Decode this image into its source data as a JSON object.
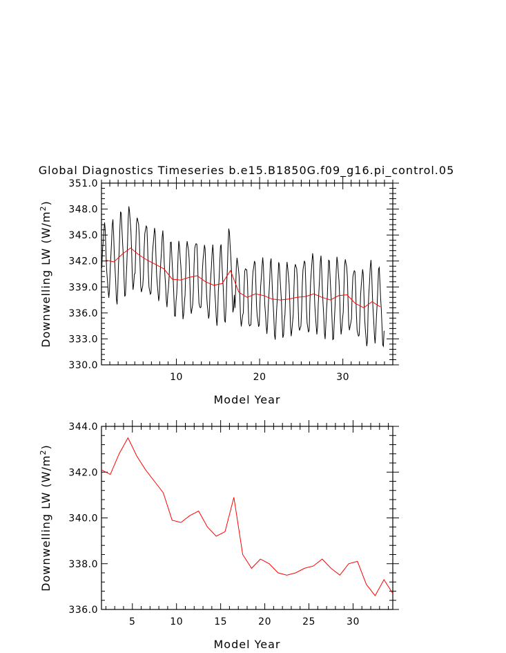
{
  "title": "Global Diagnostics Timeseries b.e15.B1850G.f09_g16.pi_control.05",
  "chart_data": [
    {
      "type": "line",
      "xlabel": "Model Year",
      "ylabel": "Downwelling LW (W/m",
      "ylabel_sup": "2",
      "ylabel_close": ")",
      "xlim": [
        1,
        36
      ],
      "ylim": [
        330,
        351
      ],
      "xticks": [
        10,
        20,
        30
      ],
      "yticks": [
        "330.0",
        "333.0",
        "336.0",
        "339.0",
        "342.0",
        "345.0",
        "348.0",
        "351.0"
      ],
      "series": [
        {
          "color": "#000000",
          "monthly": true,
          "annual_means": [
            342.1,
            341.9,
            342.8,
            343.5,
            342.7,
            342.1,
            341.6,
            341.1,
            339.9,
            339.8,
            340.1,
            340.3,
            339.6,
            339.2,
            339.4,
            340.9,
            338.4,
            337.8,
            338.2,
            338.0,
            337.6,
            337.5,
            337.6,
            337.8,
            337.9,
            338.2,
            337.8,
            337.5,
            338.0,
            338.1,
            337.1,
            336.6,
            337.3,
            336.7
          ],
          "seasonal_amplitude": [
            4.0,
            4.4,
            4.6,
            4.6,
            4.6,
            4.3,
            4.0,
            3.9,
            4.0,
            4.2,
            4.3,
            4.2,
            4.2,
            4.2,
            4.1,
            4.5,
            3.9,
            3.8,
            3.9,
            4.0,
            4.2,
            4.0,
            4.1,
            4.2,
            4.4,
            4.4,
            4.3,
            4.3,
            4.2,
            4.3,
            4.2,
            4.3,
            4.3,
            4.2
          ]
        },
        {
          "color": "#ff0000",
          "x": [
            1.5,
            2.5,
            3.5,
            4.5,
            5.5,
            6.5,
            7.5,
            8.5,
            9.5,
            10.5,
            11.5,
            12.5,
            13.5,
            14.5,
            15.5,
            16.5,
            17.5,
            18.5,
            19.5,
            20.5,
            21.5,
            22.5,
            23.5,
            24.5,
            25.5,
            26.5,
            27.5,
            28.5,
            29.5,
            30.5,
            31.5,
            32.5,
            33.5,
            34.5
          ],
          "y": [
            342.1,
            341.9,
            342.8,
            343.5,
            342.7,
            342.1,
            341.6,
            341.1,
            339.9,
            339.8,
            340.1,
            340.3,
            339.6,
            339.2,
            339.4,
            340.9,
            338.4,
            337.8,
            338.2,
            338.0,
            337.6,
            337.5,
            337.6,
            337.8,
            337.9,
            338.2,
            337.8,
            337.5,
            338.0,
            338.1,
            337.1,
            336.6,
            337.3,
            336.7
          ]
        }
      ]
    },
    {
      "type": "line",
      "xlabel": "Model Year",
      "ylabel": "Downwelling LW (W/m",
      "ylabel_sup": "2",
      "ylabel_close": ")",
      "xlim": [
        1.5,
        34.5
      ],
      "ylim": [
        336,
        344
      ],
      "xticks": [
        5,
        10,
        15,
        20,
        25,
        30
      ],
      "yticks": [
        "336.0",
        "338.0",
        "340.0",
        "342.0",
        "344.0"
      ],
      "series": [
        {
          "color": "#ff0000",
          "x": [
            1.5,
            2.5,
            3.5,
            4.5,
            5.5,
            6.5,
            7.5,
            8.5,
            9.5,
            10.5,
            11.5,
            12.5,
            13.5,
            14.5,
            15.5,
            16.5,
            17.5,
            18.5,
            19.5,
            20.5,
            21.5,
            22.5,
            23.5,
            24.5,
            25.5,
            26.5,
            27.5,
            28.5,
            29.5,
            30.5,
            31.5,
            32.5,
            33.5,
            34.5
          ],
          "y": [
            342.1,
            341.9,
            342.8,
            343.5,
            342.7,
            342.1,
            341.6,
            341.1,
            339.9,
            339.8,
            340.1,
            340.3,
            339.6,
            339.2,
            339.4,
            340.9,
            338.4,
            337.8,
            338.2,
            338.0,
            337.6,
            337.5,
            337.6,
            337.8,
            337.9,
            338.2,
            337.8,
            337.5,
            338.0,
            338.1,
            337.1,
            336.6,
            337.3,
            336.7
          ]
        }
      ]
    }
  ]
}
